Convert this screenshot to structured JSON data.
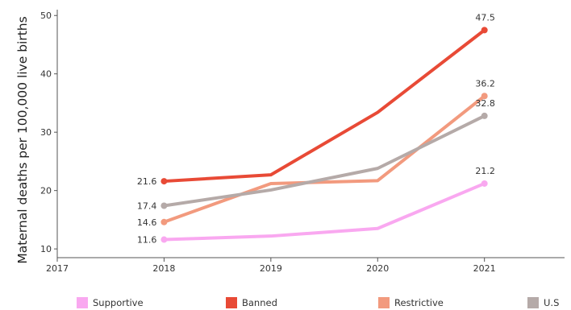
{
  "chart_data": {
    "type": "line",
    "title": "",
    "xlabel": "",
    "ylabel": "Maternal deaths per 100,000 live births",
    "x_ticks": [
      "2017",
      "2018",
      "2019",
      "2020",
      "2021"
    ],
    "y_ticks": [
      "10",
      "20",
      "30",
      "40",
      "50"
    ],
    "xlim": [
      2017,
      2021.75
    ],
    "ylim": [
      8.5,
      51
    ],
    "grid": false,
    "legend_position": "bottom",
    "series": [
      {
        "name": "Supportive",
        "color": "#f9a8f0",
        "x": [
          2018,
          2019,
          2020,
          2021
        ],
        "values": [
          11.6,
          12.2,
          13.5,
          21.2
        ],
        "point_labels": {
          "start": "11.6",
          "end": "21.2"
        }
      },
      {
        "name": "Banned",
        "color": "#e84a36",
        "x": [
          2018,
          2019,
          2020,
          2021
        ],
        "values": [
          21.6,
          22.7,
          33.4,
          47.5
        ],
        "point_labels": {
          "start": "21.6",
          "end": "47.5"
        }
      },
      {
        "name": "Restrictive",
        "color": "#f29a7e",
        "x": [
          2018,
          2019,
          2020,
          2021
        ],
        "values": [
          14.6,
          21.2,
          21.7,
          36.2
        ],
        "point_labels": {
          "start": "14.6",
          "end": "36.2"
        }
      },
      {
        "name": "U.S",
        "color": "#b5aaa8",
        "x": [
          2018,
          2019,
          2020,
          2021
        ],
        "values": [
          17.4,
          20.1,
          23.8,
          32.8
        ],
        "point_labels": {
          "start": "17.4",
          "end": "32.8"
        }
      }
    ]
  }
}
